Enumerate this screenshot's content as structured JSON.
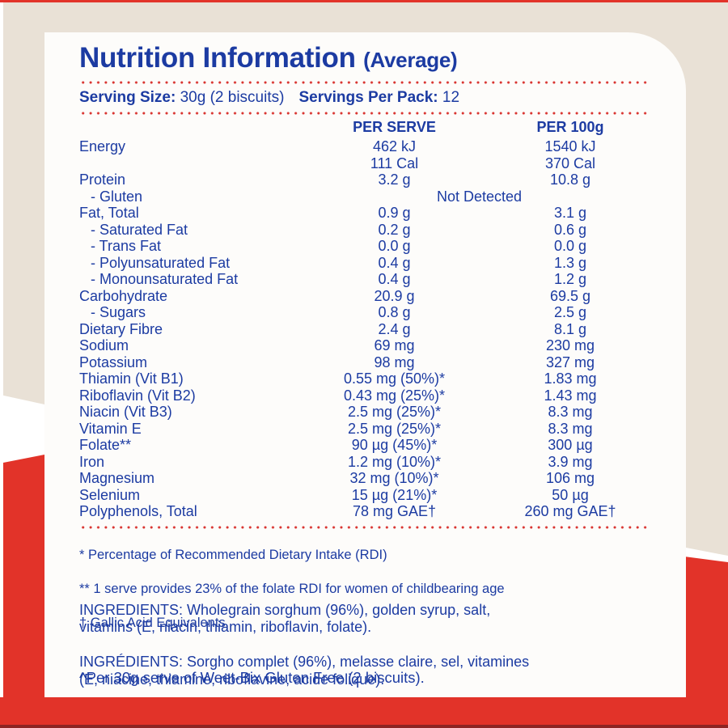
{
  "colors": {
    "blue": "#1c3ba2",
    "red": "#e23329",
    "beige": "#e9e1d6",
    "panel_white": "#fdfcfa"
  },
  "header": {
    "title": "Nutrition Information",
    "title_suffix": "(Average)"
  },
  "serving": {
    "size_label": "Serving Size:",
    "size_value": "30g (2 biscuits)",
    "pack_label": "Servings Per Pack:",
    "pack_value": "12"
  },
  "table": {
    "col_serve": "PER SERVE",
    "col_100g": "PER 100g",
    "rows": [
      {
        "label": "Energy",
        "serve": "462 kJ",
        "per100": "1540 kJ"
      },
      {
        "label": "",
        "serve": "111 Cal",
        "per100": "370 Cal"
      },
      {
        "label": "Protein",
        "serve": "3.2 g",
        "per100": "10.8 g"
      },
      {
        "label": "- Gluten",
        "indent": true,
        "span": "Not Detected"
      },
      {
        "label": "Fat, Total",
        "serve": "0.9 g",
        "per100": "3.1 g"
      },
      {
        "label": "- Saturated Fat",
        "indent": true,
        "serve": "0.2 g",
        "per100": "0.6 g"
      },
      {
        "label": "- Trans Fat",
        "indent": true,
        "serve": "0.0 g",
        "per100": "0.0 g"
      },
      {
        "label": "- Polyunsaturated Fat",
        "indent": true,
        "serve": "0.4 g",
        "per100": "1.3 g"
      },
      {
        "label": "- Monounsaturated Fat",
        "indent": true,
        "serve": "0.4 g",
        "per100": "1.2 g"
      },
      {
        "label": "Carbohydrate",
        "serve": "20.9 g",
        "per100": "69.5 g"
      },
      {
        "label": "- Sugars",
        "indent": true,
        "serve": "0.8 g",
        "per100": "2.5 g"
      },
      {
        "label": "Dietary Fibre",
        "serve": "2.4 g",
        "per100": "8.1 g"
      },
      {
        "label": "Sodium",
        "serve": "69 mg",
        "per100": "230 mg"
      },
      {
        "label": "Potassium",
        "serve": "98 mg",
        "per100": "327 mg"
      },
      {
        "label": "Thiamin (Vit B1)",
        "serve": "0.55 mg (50%)*",
        "per100": "1.83 mg"
      },
      {
        "label": "Riboflavin (Vit B2)",
        "serve": "0.43 mg (25%)*",
        "per100": "1.43 mg"
      },
      {
        "label": "Niacin (Vit B3)",
        "serve": "2.5 mg (25%)*",
        "per100": "8.3 mg"
      },
      {
        "label": "Vitamin E",
        "serve": "2.5 mg (25%)*",
        "per100": "8.3 mg"
      },
      {
        "label": "Folate**",
        "serve": "90 µg (45%)*",
        "per100": "300 µg"
      },
      {
        "label": "Iron",
        "serve": "1.2 mg (10%)*",
        "per100": "3.9 mg"
      },
      {
        "label": "Magnesium",
        "serve": "32 mg (10%)*",
        "per100": "106 mg"
      },
      {
        "label": "Selenium",
        "serve": "15 µg (21%)*",
        "per100": "50 µg"
      },
      {
        "label": "Polyphenols, Total",
        "serve": "78 mg GAE†",
        "per100": "260 mg GAE†"
      }
    ]
  },
  "footnotes": [
    "* Percentage of Recommended Dietary Intake (RDI)",
    "** 1 serve provides 23% of the folate RDI for women of childbearing age",
    "† Gallic Acid Equivalents"
  ],
  "ingredients": {
    "en_lines": [
      "INGREDIENTS: Wholegrain sorghum (96%), golden syrup, salt,",
      "vitamins (E, niacin, thiamin, riboflavin, folate)."
    ],
    "fr_lines": [
      "INGRÉDIENTS: Sorgho complet (96%), melasse claire, sel, vitamines",
      "(E, niacine, thiamine, riboflavine, acide folique)."
    ]
  },
  "note": {
    "text": "^Per 30g serve of Weet-Bix Gluten Free (2 biscuits)."
  }
}
